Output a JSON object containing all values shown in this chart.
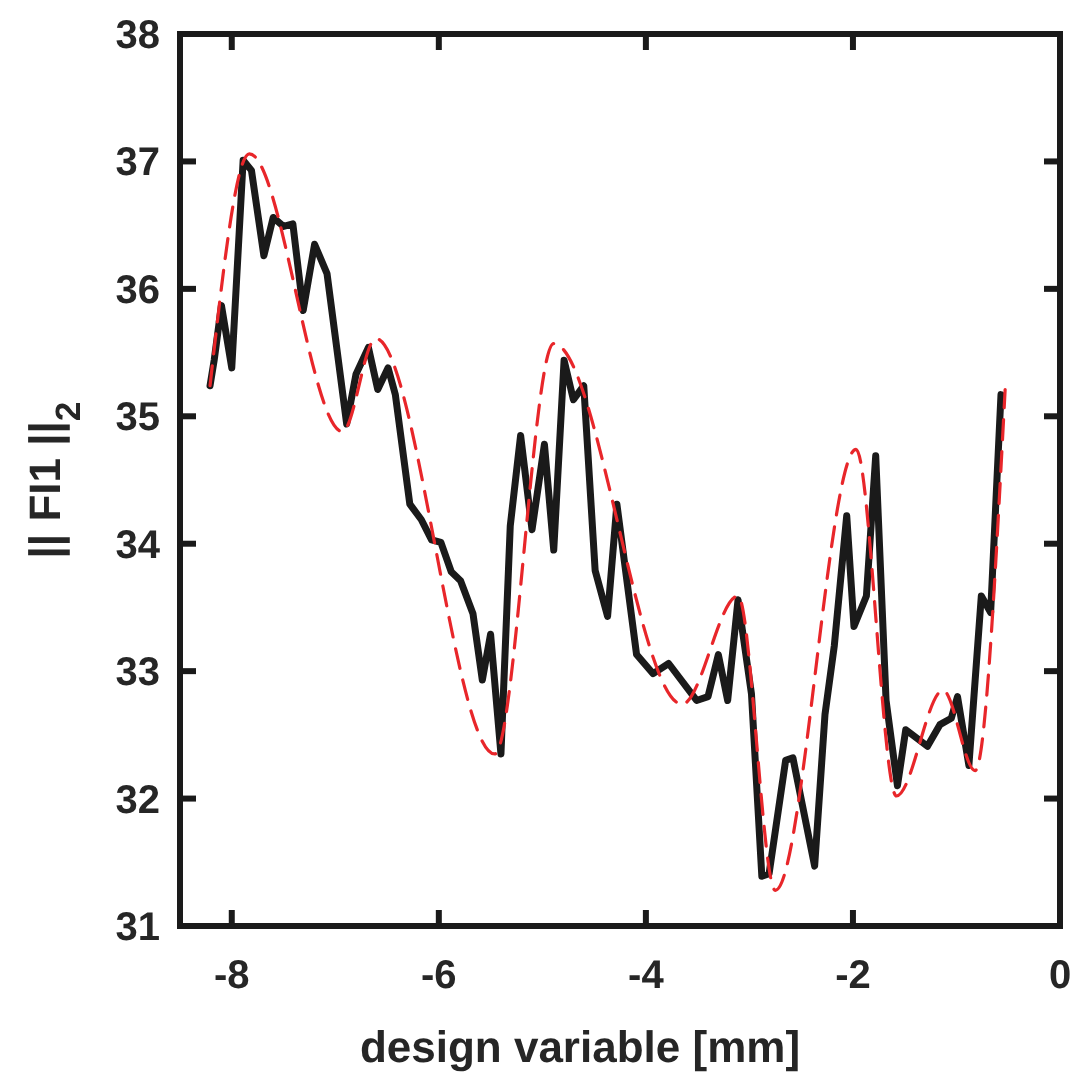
{
  "chart_data": {
    "type": "line",
    "xlabel": "design variable [mm]",
    "ylabel": "|| FI1 ||$_{2}$",
    "xlim": [
      -8.5,
      0
    ],
    "ylim": [
      31,
      38
    ],
    "xticks": [
      -8,
      -6,
      -4,
      -2,
      0
    ],
    "yticks": [
      31,
      32,
      33,
      34,
      35,
      36,
      37,
      38
    ],
    "grid": false,
    "series": [
      {
        "color": "#1a1a1a",
        "line_style": "solid",
        "x": [
          -8.21,
          -8.17,
          -8.1,
          -8.0,
          -7.89,
          -7.81,
          -7.69,
          -7.6,
          -7.5,
          -7.41,
          -7.31,
          -7.2,
          -7.08,
          -6.89,
          -6.8,
          -6.68,
          -6.59,
          -6.49,
          -6.42,
          -6.28,
          -6.17,
          -6.07,
          -5.98,
          -5.88,
          -5.79,
          -5.67,
          -5.58,
          -5.5,
          -5.4,
          -5.31,
          -5.21,
          -5.1,
          -4.98,
          -4.89,
          -4.79,
          -4.7,
          -4.6,
          -4.49,
          -4.37,
          -4.28,
          -4.09,
          -3.93,
          -3.78,
          -3.51,
          -3.4,
          -3.3,
          -3.21,
          -3.11,
          -2.98,
          -2.88,
          -2.81,
          -2.65,
          -2.58,
          -2.37,
          -2.27,
          -2.18,
          -2.06,
          -1.99,
          -1.87,
          -1.78,
          -1.68,
          -1.57,
          -1.49,
          -1.28,
          -1.16,
          -1.05,
          -0.99,
          -0.88,
          -0.76,
          -0.67,
          -0.57
        ],
        "values": [
          35.24,
          35.44,
          35.87,
          35.38,
          37.01,
          36.93,
          36.26,
          36.56,
          36.49,
          36.51,
          35.83,
          36.35,
          36.12,
          34.94,
          35.33,
          35.54,
          35.21,
          35.38,
          35.17,
          34.31,
          34.19,
          34.03,
          34.01,
          33.78,
          33.71,
          33.45,
          32.93,
          33.29,
          32.35,
          34.14,
          34.85,
          34.11,
          34.78,
          33.95,
          35.44,
          35.13,
          35.24,
          33.79,
          33.43,
          34.31,
          33.13,
          32.98,
          33.06,
          32.77,
          32.8,
          33.13,
          32.77,
          33.56,
          32.82,
          31.39,
          31.41,
          32.3,
          32.32,
          31.47,
          32.66,
          33.2,
          34.22,
          33.35,
          33.59,
          34.69,
          32.77,
          32.1,
          32.54,
          32.41,
          32.58,
          32.63,
          32.8,
          32.26,
          33.59,
          33.46,
          35.17
        ]
      },
      {
        "color": "#e8262a",
        "line_style": "dashed",
        "x": [
          -8.21,
          -7.83,
          -6.93,
          -6.61,
          -5.46,
          -4.89,
          -3.65,
          -3.11,
          -2.75,
          -1.97,
          -1.58,
          -1.13,
          -0.82,
          -0.53
        ],
        "values": [
          35.24,
          37.06,
          34.88,
          35.61,
          32.35,
          35.57,
          32.74,
          33.59,
          31.28,
          34.74,
          32.02,
          32.85,
          32.22,
          35.21
        ]
      }
    ]
  }
}
